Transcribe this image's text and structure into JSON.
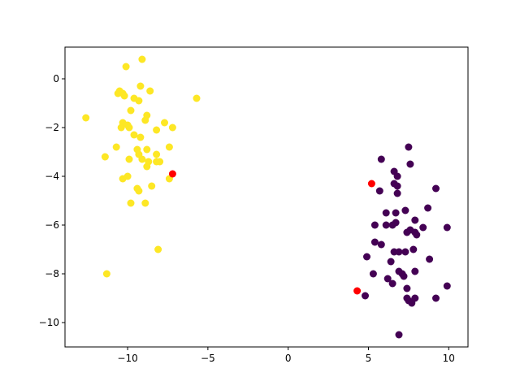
{
  "chart_data": {
    "type": "scatter",
    "title": "",
    "xlabel": "",
    "ylabel": "",
    "xlim": [
      -13.9,
      11.2
    ],
    "ylim": [
      -11.0,
      1.3
    ],
    "xticks": [
      -10,
      -5,
      0,
      5,
      10
    ],
    "yticks": [
      0,
      -2,
      -4,
      -6,
      -8,
      -10
    ],
    "grid": false,
    "series": [
      {
        "color": "#fde725",
        "points": [
          [
            -9.1,
            0.8
          ],
          [
            -10.1,
            0.5
          ],
          [
            -9.2,
            -0.3
          ],
          [
            -8.6,
            -0.5
          ],
          [
            -10.5,
            -0.5
          ],
          [
            -10.3,
            -0.6
          ],
          [
            -10.6,
            -0.6
          ],
          [
            -10.2,
            -0.7
          ],
          [
            -9.6,
            -0.8
          ],
          [
            -9.3,
            -0.9
          ],
          [
            -5.7,
            -0.8
          ],
          [
            -9.8,
            -1.3
          ],
          [
            -8.8,
            -1.5
          ],
          [
            -12.6,
            -1.6
          ],
          [
            -10.3,
            -1.8
          ],
          [
            -8.9,
            -1.7
          ],
          [
            -10.0,
            -1.9
          ],
          [
            -7.7,
            -1.8
          ],
          [
            -10.4,
            -2.0
          ],
          [
            -9.9,
            -2.0
          ],
          [
            -8.2,
            -2.1
          ],
          [
            -7.2,
            -2.0
          ],
          [
            -9.6,
            -2.3
          ],
          [
            -9.2,
            -2.4
          ],
          [
            -10.7,
            -2.8
          ],
          [
            -9.4,
            -2.9
          ],
          [
            -8.8,
            -2.9
          ],
          [
            -7.4,
            -2.8
          ],
          [
            -9.3,
            -3.1
          ],
          [
            -8.2,
            -3.1
          ],
          [
            -11.4,
            -3.2
          ],
          [
            -9.9,
            -3.3
          ],
          [
            -9.1,
            -3.3
          ],
          [
            -8.7,
            -3.4
          ],
          [
            -8.2,
            -3.4
          ],
          [
            -8.0,
            -3.4
          ],
          [
            -8.8,
            -3.6
          ],
          [
            -7.4,
            -4.1
          ],
          [
            -10.3,
            -4.1
          ],
          [
            -10.0,
            -4.0
          ],
          [
            -8.5,
            -4.4
          ],
          [
            -9.4,
            -4.5
          ],
          [
            -9.3,
            -4.6
          ],
          [
            -8.9,
            -5.1
          ],
          [
            -9.8,
            -5.1
          ],
          [
            -8.1,
            -7.0
          ],
          [
            -11.3,
            -8.0
          ]
        ]
      },
      {
        "color": "#440154",
        "points": [
          [
            7.5,
            -2.8
          ],
          [
            5.8,
            -3.3
          ],
          [
            7.6,
            -3.5
          ],
          [
            6.6,
            -3.8
          ],
          [
            6.8,
            -4.0
          ],
          [
            6.6,
            -4.3
          ],
          [
            6.8,
            -4.4
          ],
          [
            9.2,
            -4.5
          ],
          [
            5.7,
            -4.6
          ],
          [
            6.8,
            -4.7
          ],
          [
            8.7,
            -5.3
          ],
          [
            7.3,
            -5.4
          ],
          [
            6.7,
            -5.5
          ],
          [
            6.1,
            -5.5
          ],
          [
            6.7,
            -5.9
          ],
          [
            6.5,
            -6.0
          ],
          [
            5.4,
            -6.0
          ],
          [
            6.1,
            -6.0
          ],
          [
            9.9,
            -6.1
          ],
          [
            8.4,
            -6.1
          ],
          [
            7.9,
            -5.8
          ],
          [
            7.6,
            -6.2
          ],
          [
            7.4,
            -6.3
          ],
          [
            7.9,
            -6.3
          ],
          [
            8.0,
            -6.4
          ],
          [
            5.4,
            -6.7
          ],
          [
            5.8,
            -6.8
          ],
          [
            7.8,
            -7.0
          ],
          [
            6.6,
            -7.1
          ],
          [
            7.3,
            -7.1
          ],
          [
            6.9,
            -7.1
          ],
          [
            4.9,
            -7.3
          ],
          [
            8.8,
            -7.4
          ],
          [
            6.4,
            -7.5
          ],
          [
            5.3,
            -8.0
          ],
          [
            6.9,
            -7.9
          ],
          [
            7.9,
            -7.9
          ],
          [
            7.1,
            -8.0
          ],
          [
            7.2,
            -8.1
          ],
          [
            6.2,
            -8.2
          ],
          [
            6.5,
            -8.4
          ],
          [
            9.9,
            -8.5
          ],
          [
            7.4,
            -8.6
          ],
          [
            4.8,
            -8.9
          ],
          [
            9.2,
            -9.0
          ],
          [
            7.4,
            -9.0
          ],
          [
            7.5,
            -9.1
          ],
          [
            7.7,
            -9.2
          ],
          [
            7.9,
            -9.0
          ],
          [
            6.9,
            -10.5
          ]
        ]
      },
      {
        "color": "#ff0000",
        "points": [
          [
            -7.2,
            -3.9
          ],
          [
            5.2,
            -4.3
          ],
          [
            4.3,
            -8.7
          ]
        ]
      }
    ]
  }
}
